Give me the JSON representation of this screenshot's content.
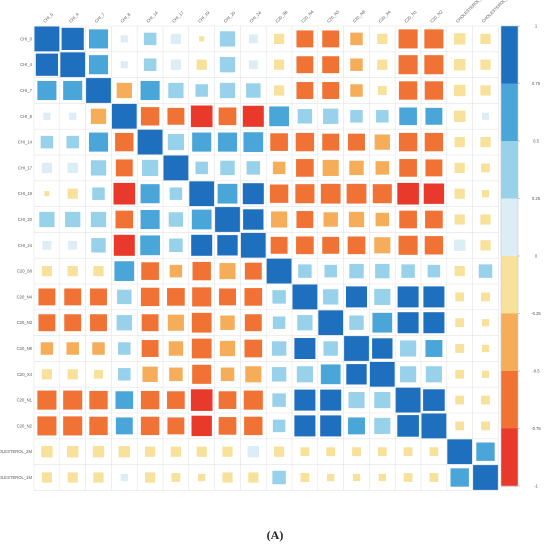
{
  "caption": "(A)",
  "chart_data": {
    "type": "heatmap",
    "variables": [
      "CHI_0",
      "CHI_4",
      "CHI_7",
      "CHI_8",
      "CHI_14",
      "CHI_17",
      "CHI_19",
      "CHI_20",
      "CHI_24",
      "C20_S8",
      "C20_N4",
      "C20_N3",
      "C20_N8",
      "C20_X4",
      "C20_N1",
      "C20_N2",
      "CHOLESTEROL_2M",
      "CHOLESTEROL_1M"
    ],
    "row_labels": [
      "CHI_0",
      "CHI_4",
      "CHI_7",
      "CHI_8",
      "CHI_14",
      "CHI_17",
      "CHI_19",
      "CHI_20",
      "CHI_24",
      "C20_S8",
      "C20_N4",
      "C20_N3",
      "C20_N8",
      "C20_X4",
      "C20_N1",
      "C20_N2",
      "CHOLESTEROL_2M",
      "CHOLESTEROL_1M"
    ],
    "matrix": [
      [
        1,
        0.95,
        0.7,
        0.1,
        0.3,
        0.2,
        -0.05,
        0.45,
        0.15,
        -0.2,
        -0.55,
        -0.55,
        -0.3,
        -0.2,
        -0.7,
        -0.7,
        -0.25,
        -0.2
      ],
      [
        0.95,
        1,
        0.7,
        0.1,
        0.3,
        0.2,
        -0.2,
        0.45,
        0.15,
        -0.2,
        -0.55,
        -0.55,
        -0.3,
        -0.2,
        -0.7,
        -0.7,
        -0.25,
        -0.2
      ],
      [
        0.7,
        0.7,
        1,
        -0.45,
        0.7,
        0.45,
        0.3,
        0.45,
        0.4,
        -0.2,
        -0.55,
        -0.55,
        -0.3,
        -0.15,
        -0.65,
        -0.65,
        -0.25,
        -0.2
      ],
      [
        0.1,
        0.1,
        -0.45,
        1,
        -0.65,
        -0.55,
        -0.9,
        -0.6,
        -0.85,
        0.75,
        0.4,
        0.45,
        0.3,
        0.3,
        0.6,
        0.55,
        -0.25,
        0.1
      ],
      [
        0.3,
        0.3,
        0.7,
        -0.65,
        1,
        0.5,
        0.7,
        0.7,
        0.75,
        -0.6,
        -0.65,
        -0.55,
        -0.55,
        -0.45,
        -0.65,
        -0.65,
        -0.2,
        -0.2
      ],
      [
        0.2,
        0.2,
        0.45,
        -0.55,
        0.5,
        1,
        0.3,
        0.4,
        0.35,
        -0.3,
        -0.6,
        -0.5,
        -0.4,
        -0.35,
        -0.6,
        -0.55,
        -0.2,
        -0.15
      ],
      [
        -0.05,
        -0.2,
        0.3,
        -0.9,
        0.7,
        0.3,
        1,
        0.75,
        0.85,
        -0.65,
        -0.7,
        -0.75,
        -0.75,
        -0.7,
        -0.9,
        -0.8,
        -0.2,
        -0.1
      ],
      [
        0.45,
        0.45,
        0.45,
        -0.6,
        0.7,
        0.4,
        0.75,
        1,
        0.8,
        -0.5,
        -0.55,
        -0.4,
        -0.45,
        -0.35,
        -0.6,
        -0.6,
        -0.2,
        -0.2
      ],
      [
        0.15,
        0.15,
        0.4,
        -0.85,
        0.75,
        0.35,
        0.85,
        0.8,
        1,
        -0.55,
        -0.6,
        -0.55,
        -0.6,
        -0.5,
        -0.7,
        -0.65,
        0.25,
        -0.2
      ],
      [
        -0.2,
        -0.2,
        -0.2,
        0.75,
        -0.6,
        -0.3,
        -0.65,
        -0.5,
        -0.55,
        1,
        0.35,
        0.3,
        0.4,
        0.4,
        0.35,
        0.3,
        -0.2,
        0.35
      ],
      [
        -0.55,
        -0.55,
        -0.55,
        0.4,
        -0.65,
        -0.6,
        -0.7,
        -0.55,
        -0.6,
        0.35,
        1,
        0.45,
        0.85,
        0.5,
        0.85,
        0.85,
        -0.15,
        -0.15
      ],
      [
        -0.55,
        -0.55,
        -0.55,
        0.45,
        -0.55,
        -0.5,
        -0.75,
        -0.4,
        -0.55,
        0.3,
        0.45,
        1,
        0.4,
        0.75,
        0.85,
        0.85,
        -0.15,
        -0.1
      ],
      [
        -0.3,
        -0.3,
        -0.3,
        0.3,
        -0.55,
        -0.4,
        -0.75,
        -0.45,
        -0.6,
        0.4,
        0.85,
        0.4,
        1,
        0.8,
        0.5,
        0.55,
        -0.15,
        -0.1
      ],
      [
        -0.2,
        -0.2,
        -0.15,
        0.3,
        -0.45,
        -0.35,
        -0.7,
        -0.35,
        -0.5,
        0.4,
        0.5,
        0.75,
        0.8,
        1,
        0.5,
        0.5,
        -0.15,
        -0.1
      ],
      [
        -0.7,
        -0.7,
        -0.65,
        0.6,
        -0.65,
        -0.6,
        -0.9,
        -0.6,
        -0.7,
        0.35,
        0.85,
        0.85,
        0.5,
        0.5,
        1,
        0.9,
        -0.15,
        -0.15
      ],
      [
        -0.7,
        -0.7,
        -0.65,
        0.55,
        -0.65,
        -0.55,
        -0.8,
        -0.6,
        -0.65,
        0.3,
        0.85,
        0.85,
        0.55,
        0.5,
        0.9,
        1,
        -0.15,
        -0.15
      ],
      [
        -0.25,
        -0.25,
        -0.25,
        -0.25,
        -0.2,
        -0.2,
        -0.2,
        -0.2,
        0.25,
        -0.2,
        -0.15,
        -0.15,
        -0.15,
        -0.15,
        -0.15,
        -0.15,
        1,
        0.65
      ],
      [
        -0.2,
        -0.2,
        -0.2,
        0.1,
        -0.2,
        -0.15,
        -0.1,
        -0.2,
        -0.2,
        0.35,
        -0.15,
        -0.1,
        -0.1,
        -0.1,
        -0.15,
        -0.15,
        0.65,
        1
      ]
    ],
    "colorbar": {
      "range": [
        -1,
        1
      ],
      "ticks": [
        "1",
        "0.75",
        "0.5",
        "0.25",
        "0",
        "-0.25",
        "-0.5",
        "-0.75",
        "-1"
      ],
      "colors": [
        "#1f6fbf",
        "#4aa6d8",
        "#98d1ea",
        "#dcedf6",
        "#f8e19a",
        "#f5ad5a",
        "#f07234",
        "#e8392a"
      ]
    },
    "colors": {
      "grid": "#e4e4e4",
      "frame": "#c8c8c8",
      "label": "#555555"
    },
    "grid": true,
    "legend_placement": "right"
  }
}
